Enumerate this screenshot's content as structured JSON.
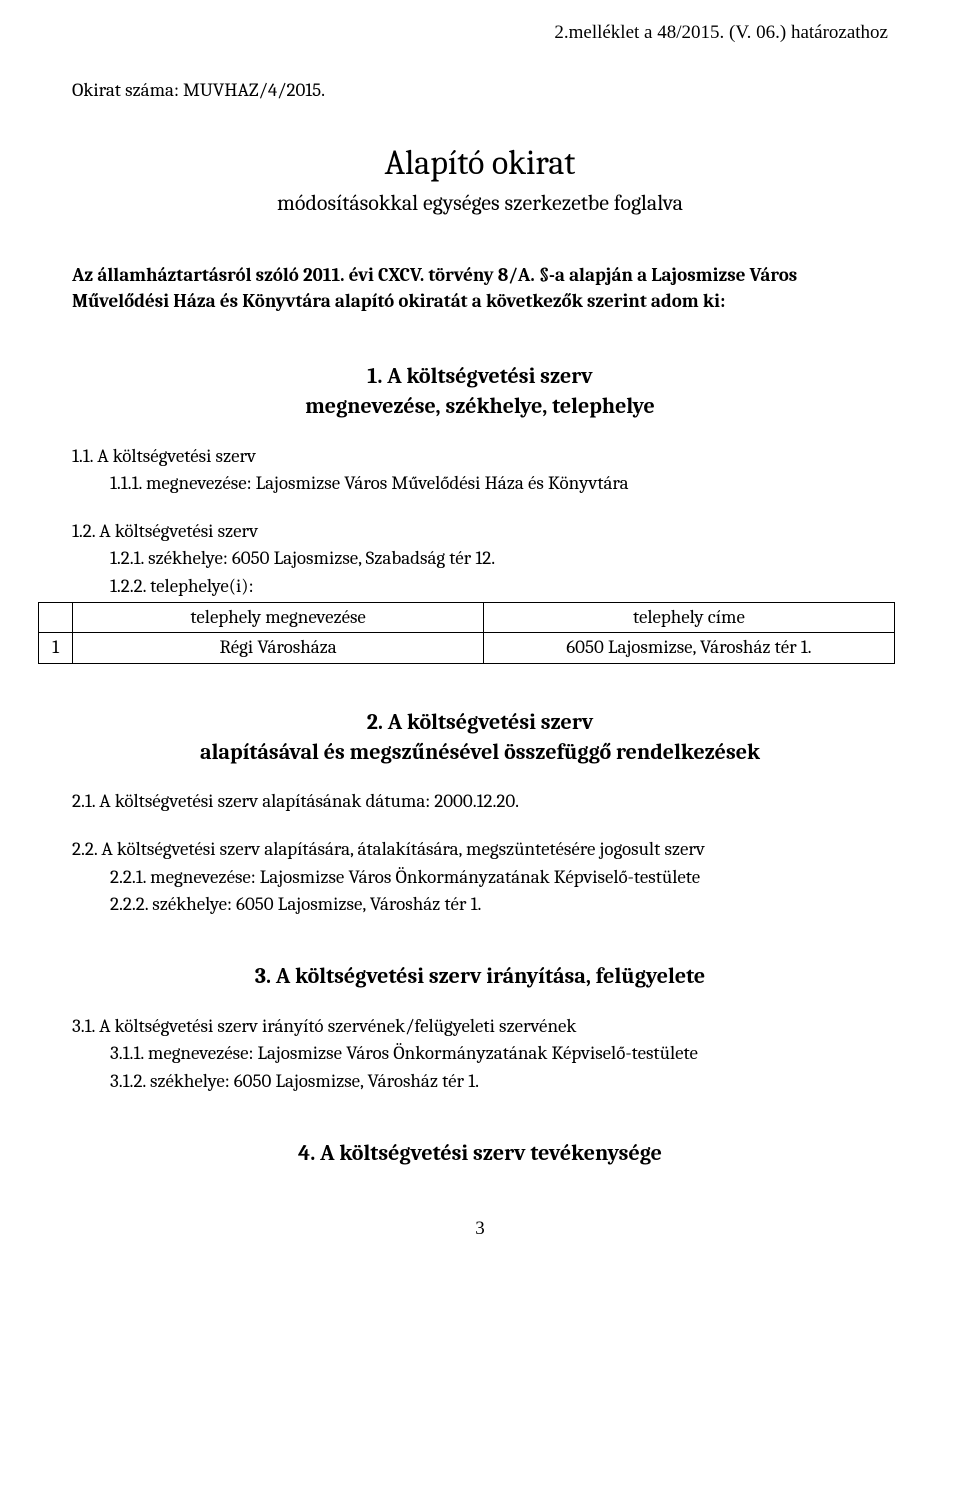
{
  "header": {
    "attachment_note": "2.melléklet a 48/2015. (V. 06.) határozathoz",
    "doc_number_label": "Okirat száma: MUVHAZ/4/2015."
  },
  "title": {
    "main": "Alapító okirat",
    "subtitle": "módosításokkal egységes szerkezetbe foglalva"
  },
  "intro_text": "Az államháztartásról szóló 2011. évi CXCV. törvény 8/A. §-a alapján a Lajosmizse Város Művelődési Háza és Könyvtára alapító okiratát a következők szerint adom ki:",
  "section1": {
    "heading_line1": "1. A költségvetési szerv",
    "heading_line2": "megnevezése, székhelye, telephelye",
    "c11": "1.1.   A költségvetési szerv",
    "c111": "1.1.1.   megnevezése: Lajosmizse Város Művelődési Háza és Könyvtára",
    "c12": "1.2.   A költségvetési szerv",
    "c121": "1.2.1.   székhelye: 6050 Lajosmizse, Szabadság tér 12.",
    "c122": "1.2.2.   telephelye(i):",
    "table": {
      "head_name": "telephely megnevezése",
      "head_addr": "telephely címe",
      "rows": [
        {
          "idx": "1",
          "name": "Régi Városháza",
          "addr": "6050 Lajosmizse, Városház tér 1."
        }
      ]
    }
  },
  "section2": {
    "heading_line1": "2. A költségvetési szerv",
    "heading_line2": "alapításával és megszűnésével összefüggő rendelkezések",
    "c21": "2.1.   A költségvetési szerv alapításának dátuma: 2000.12.20.",
    "c22": "2.2.   A költségvetési szerv alapítására, átalakítására, megszüntetésére jogosult szerv",
    "c221": "2.2.1.   megnevezése: Lajosmizse Város Önkormányzatának Képviselő-testülete",
    "c222": "2.2.2.   székhelye: 6050 Lajosmizse, Városház tér 1."
  },
  "section3": {
    "heading": "3. A költségvetési szerv irányítása, felügyelete",
    "c31": "3.1.   A költségvetési szerv irányító szervének/felügyeleti szervének",
    "c311": "3.1.1.   megnevezése: Lajosmizse Város Önkormányzatának Képviselő-testülete",
    "c312": "3.1.2.   székhelye: 6050 Lajosmizse, Városház tér 1."
  },
  "section4": {
    "heading": "4. A költségvetési szerv tevékenysége"
  },
  "page_number": "3"
}
